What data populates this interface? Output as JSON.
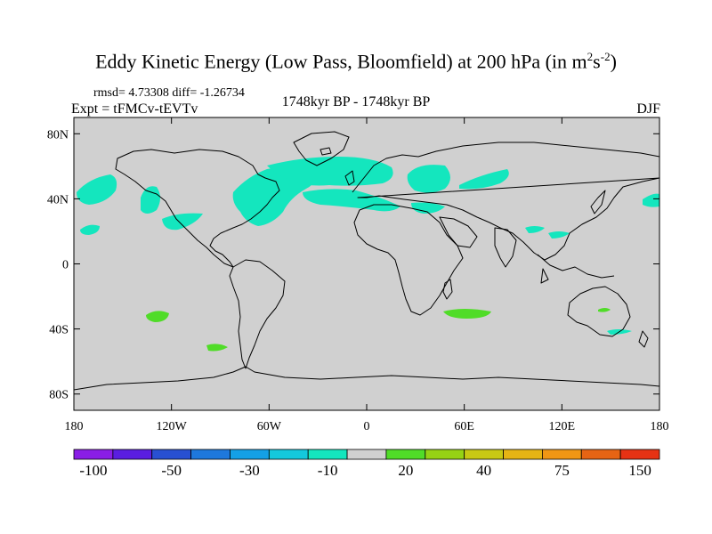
{
  "title": {
    "main": "Eddy Kinetic Energy (Low Pass, Bloomfield) at 200 hPa (in m",
    "sup1": "2",
    "mid": "s",
    "sup2": "-2",
    "end": ")"
  },
  "stats": "rmsd= 4.73308 diff= -1.26734",
  "expt": "Expt = tFMCv-tEVTv",
  "period": "1748kyr BP - 1748kyr BP",
  "season": "DJF",
  "lat_labels": [
    {
      "value": 80,
      "label": "80N"
    },
    {
      "value": 40,
      "label": "40N"
    },
    {
      "value": 0,
      "label": "0"
    },
    {
      "value": -40,
      "label": "40S"
    },
    {
      "value": -80,
      "label": "80S"
    }
  ],
  "lon_labels": [
    {
      "value": -180,
      "label": "180"
    },
    {
      "value": -120,
      "label": "120W"
    },
    {
      "value": -60,
      "label": "60W"
    },
    {
      "value": 0,
      "label": "0"
    },
    {
      "value": 60,
      "label": "60E"
    },
    {
      "value": 120,
      "label": "120E"
    },
    {
      "value": 180,
      "label": "180"
    }
  ],
  "colorbar": {
    "colors": [
      "#8a1ee6",
      "#5a1ee0",
      "#2850d2",
      "#1e78dc",
      "#14a0e6",
      "#14c8dc",
      "#14e6be",
      "#d0d0d0",
      "#50dc28",
      "#96d214",
      "#c8c814",
      "#e6b414",
      "#f09614",
      "#e66414",
      "#e63214"
    ],
    "labels": [
      {
        "index": 1,
        "text": "-100"
      },
      {
        "index": 3,
        "text": "-50"
      },
      {
        "index": 5,
        "text": "-30"
      },
      {
        "index": 7,
        "text": "-10"
      },
      {
        "index": 9,
        "text": "20"
      },
      {
        "index": 11,
        "text": "40"
      },
      {
        "index": 13,
        "text": "75"
      },
      {
        "index": 15,
        "text": "150"
      }
    ]
  },
  "field_colors": {
    "background": "#d0d0d0",
    "negative": "#14e6be",
    "positive": "#50dc28",
    "coastline": "#000000"
  }
}
